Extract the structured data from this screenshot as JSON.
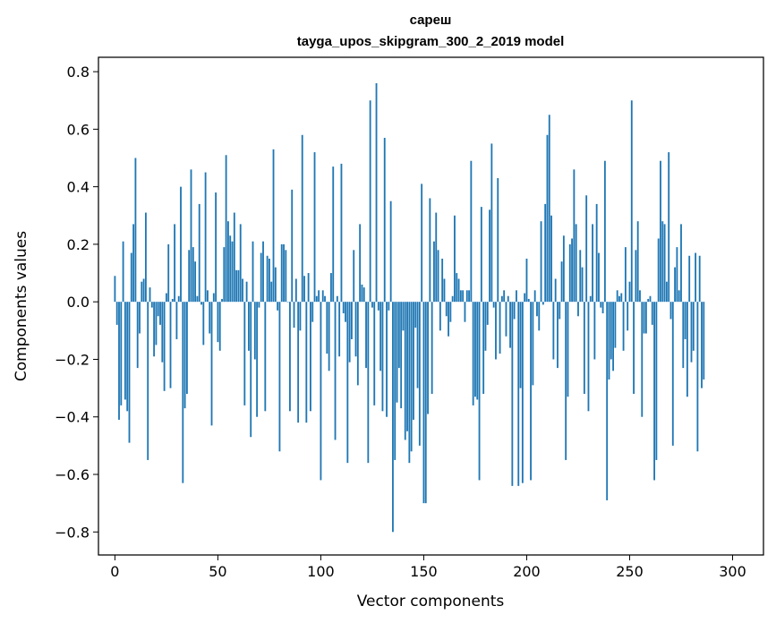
{
  "chart_data": {
    "type": "bar",
    "title": "сареш",
    "subtitle": "tayga_upos_skipgram_300_2_2019 model",
    "xlabel": "Vector components",
    "ylabel": "Components values",
    "xlim": [
      -8,
      315
    ],
    "ylim": [
      -0.88,
      0.85
    ],
    "xticks": [
      0,
      50,
      100,
      150,
      200,
      250,
      300
    ],
    "yticks": [
      -0.8,
      -0.6,
      -0.4,
      -0.2,
      0.0,
      0.2,
      0.4,
      0.6,
      0.8
    ],
    "ytick_labels": [
      "−0.8",
      "−0.6",
      "−0.4",
      "−0.2",
      "0.0",
      "0.2",
      "0.4",
      "0.6",
      "0.8"
    ],
    "bar_color": "#1f77b4",
    "values": [
      0.09,
      -0.08,
      -0.41,
      -0.36,
      0.21,
      -0.34,
      -0.38,
      -0.49,
      0.17,
      0.27,
      0.5,
      -0.23,
      -0.11,
      0.07,
      0.08,
      0.31,
      -0.55,
      0.05,
      -0.02,
      -0.19,
      -0.15,
      -0.05,
      -0.08,
      -0.21,
      -0.31,
      0.03,
      0.2,
      -0.3,
      0.01,
      0.27,
      -0.13,
      0.02,
      0.4,
      -0.63,
      -0.37,
      -0.32,
      0.18,
      0.46,
      0.19,
      0.14,
      0.02,
      0.34,
      -0.01,
      -0.15,
      0.45,
      0.04,
      -0.11,
      -0.43,
      0.03,
      0.38,
      -0.14,
      -0.17,
      0.01,
      0.19,
      0.51,
      0.28,
      0.23,
      0.21,
      0.31,
      0.11,
      0.11,
      0.27,
      0.08,
      -0.36,
      0.07,
      -0.17,
      -0.47,
      0.21,
      -0.2,
      -0.4,
      -0.02,
      0.17,
      0.21,
      -0.38,
      0.16,
      0.15,
      0.07,
      0.53,
      0.12,
      -0.03,
      -0.52,
      0.2,
      0.2,
      0.18,
      0.0,
      -0.38,
      0.39,
      -0.09,
      0.08,
      -0.42,
      -0.1,
      0.58,
      0.09,
      -0.42,
      0.1,
      -0.38,
      -0.07,
      0.52,
      0.02,
      0.04,
      -0.62,
      0.04,
      0.02,
      -0.18,
      -0.24,
      0.1,
      0.47,
      -0.48,
      0.02,
      -0.19,
      0.48,
      -0.04,
      -0.07,
      -0.56,
      -0.21,
      -0.13,
      0.18,
      -0.19,
      -0.29,
      0.27,
      0.06,
      0.05,
      -0.23,
      -0.56,
      0.7,
      -0.02,
      -0.36,
      0.76,
      -0.03,
      -0.24,
      -0.38,
      0.57,
      -0.4,
      -0.03,
      0.35,
      -0.8,
      -0.55,
      -0.35,
      -0.23,
      -0.37,
      -0.1,
      -0.48,
      -0.45,
      -0.56,
      -0.52,
      -0.41,
      -0.09,
      -0.3,
      -0.5,
      0.41,
      -0.7,
      -0.7,
      -0.39,
      0.36,
      -0.32,
      0.21,
      0.31,
      0.18,
      -0.1,
      0.15,
      0.08,
      -0.05,
      -0.12,
      -0.07,
      0.02,
      0.3,
      0.1,
      0.08,
      0.04,
      0.04,
      -0.07,
      0.04,
      0.04,
      0.49,
      -0.36,
      -0.33,
      -0.34,
      -0.62,
      0.33,
      -0.32,
      -0.17,
      -0.08,
      0.32,
      0.55,
      -0.02,
      -0.2,
      0.43,
      -0.18,
      0.02,
      0.04,
      -0.12,
      0.02,
      -0.16,
      -0.64,
      -0.06,
      0.04,
      -0.64,
      -0.3,
      -0.63,
      0.03,
      0.15,
      0.01,
      -0.62,
      -0.29,
      0.04,
      -0.05,
      -0.1,
      0.28,
      -0.01,
      0.34,
      0.58,
      0.65,
      0.3,
      -0.2,
      0.08,
      -0.23,
      -0.06,
      0.14,
      0.23,
      -0.55,
      -0.33,
      0.2,
      0.22,
      0.46,
      0.27,
      -0.05,
      0.18,
      0.12,
      -0.32,
      0.37,
      -0.38,
      0.02,
      0.27,
      -0.2,
      0.34,
      0.17,
      -0.02,
      -0.04,
      0.49,
      -0.69,
      -0.27,
      -0.2,
      -0.24,
      -0.16,
      0.04,
      0.02,
      0.03,
      -0.17,
      0.19,
      -0.1,
      0.07,
      0.7,
      -0.32,
      0.18,
      0.28,
      0.04,
      -0.4,
      -0.11,
      -0.11,
      0.01,
      0.02,
      -0.08,
      -0.62,
      -0.55,
      0.22,
      0.49,
      0.28,
      0.27,
      0.07,
      0.52,
      -0.06,
      -0.5,
      0.12,
      0.19,
      0.04,
      0.27,
      -0.23,
      -0.13,
      -0.33,
      0.16,
      -0.21,
      -0.17,
      0.17,
      -0.52,
      0.16,
      -0.3,
      -0.27
    ]
  }
}
